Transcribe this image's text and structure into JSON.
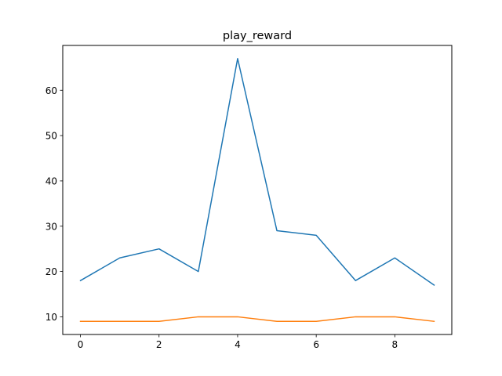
{
  "chart_data": {
    "type": "line",
    "title": "play_reward",
    "xlabel": "",
    "ylabel": "",
    "x": [
      0,
      1,
      2,
      3,
      4,
      5,
      6,
      7,
      8,
      9
    ],
    "xlim": [
      -0.45,
      9.45
    ],
    "ylim": [
      6.1,
      69.9
    ],
    "xticks": [
      0,
      2,
      4,
      6,
      8
    ],
    "yticks": [
      10,
      20,
      30,
      40,
      50,
      60
    ],
    "grid": false,
    "legend": "none",
    "series": [
      {
        "color": "#1f77b4",
        "values": [
          18,
          23,
          25,
          20,
          67,
          29,
          28,
          18,
          23,
          17
        ]
      },
      {
        "color": "#ff7f0e",
        "values": [
          9,
          9,
          9,
          10,
          10,
          9,
          9,
          10,
          10,
          9
        ]
      }
    ]
  }
}
